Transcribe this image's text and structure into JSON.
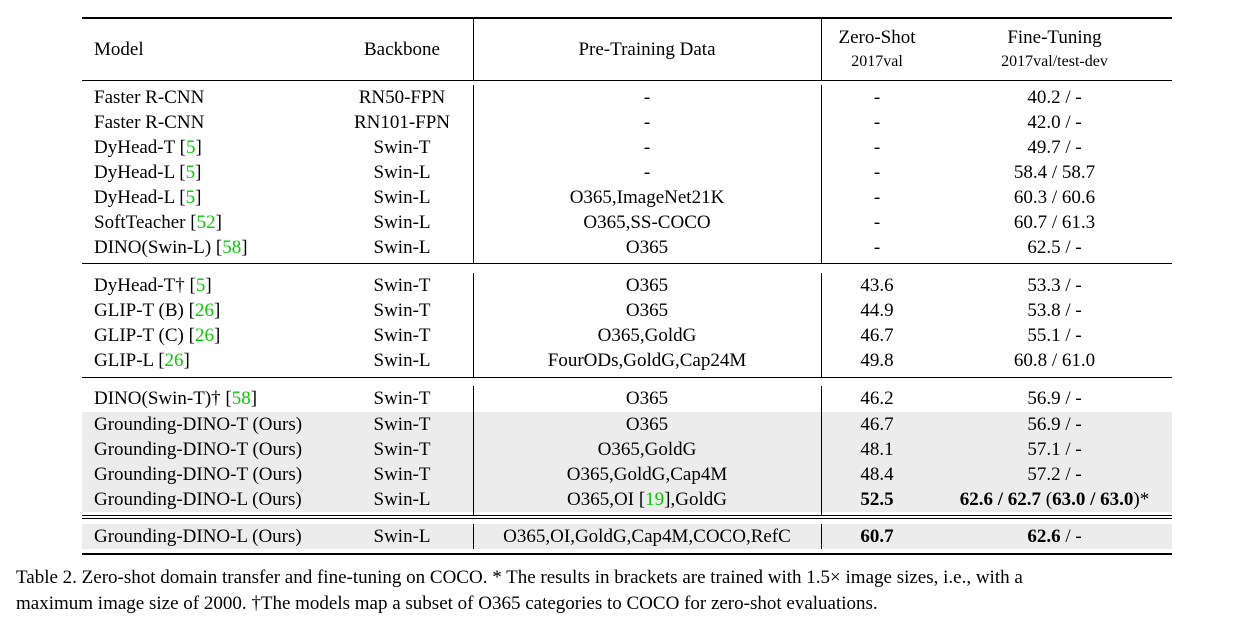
{
  "table": {
    "headers": {
      "model": "Model",
      "backbone": "Backbone",
      "pretraining": "Pre-Training Data",
      "zeroshot": "Zero-Shot",
      "zeroshot_sub": "2017val",
      "finetuning": "Fine-Tuning",
      "finetuning_sub": "2017val/test-dev"
    },
    "rows": [
      {
        "model": "Faster R-CNN",
        "cite": "",
        "backbone": "RN50-FPN",
        "data": "-",
        "data_cite": "",
        "data_tail": "",
        "zero": "-",
        "ft": "40.2 / -"
      },
      {
        "model": "Faster R-CNN",
        "cite": "",
        "backbone": "RN101-FPN",
        "data": "-",
        "data_cite": "",
        "data_tail": "",
        "zero": "-",
        "ft": "42.0 / -"
      },
      {
        "model": "DyHead-T ",
        "cite": "5",
        "backbone": "Swin-T",
        "data": "-",
        "data_cite": "",
        "data_tail": "",
        "zero": "-",
        "ft": "49.7 / -"
      },
      {
        "model": "DyHead-L ",
        "cite": "5",
        "backbone": "Swin-L",
        "data": "-",
        "data_cite": "",
        "data_tail": "",
        "zero": "-",
        "ft": "58.4 / 58.7"
      },
      {
        "model": "DyHead-L ",
        "cite": "5",
        "backbone": "Swin-L",
        "data": "O365,ImageNet21K",
        "data_cite": "",
        "data_tail": "",
        "zero": "-",
        "ft": "60.3 / 60.6"
      },
      {
        "model": "SoftTeacher ",
        "cite": "52",
        "backbone": "Swin-L",
        "data": "O365,SS-COCO",
        "data_cite": "",
        "data_tail": "",
        "zero": "-",
        "ft": "60.7 / 61.3"
      },
      {
        "model": "DINO(Swin-L) ",
        "cite": "58",
        "backbone": "Swin-L",
        "data": "O365",
        "data_cite": "",
        "data_tail": "",
        "zero": "-",
        "ft": "62.5 / -"
      },
      {
        "model": "DyHead-T† ",
        "cite": "5",
        "backbone": "Swin-T",
        "data": "O365",
        "data_cite": "",
        "data_tail": "",
        "zero": "43.6",
        "ft": "53.3 / -"
      },
      {
        "model": "GLIP-T (B) ",
        "cite": "26",
        "backbone": "Swin-T",
        "data": "O365",
        "data_cite": "",
        "data_tail": "",
        "zero": "44.9",
        "ft": "53.8 / -"
      },
      {
        "model": "GLIP-T (C) ",
        "cite": "26",
        "backbone": "Swin-T",
        "data": "O365,GoldG",
        "data_cite": "",
        "data_tail": "",
        "zero": "46.7",
        "ft": "55.1 / -"
      },
      {
        "model": "GLIP-L ",
        "cite": "26",
        "backbone": "Swin-L",
        "data": "FourODs,GoldG,Cap24M",
        "data_cite": "",
        "data_tail": "",
        "zero": "49.8",
        "ft": "60.8 / 61.0"
      },
      {
        "model": "DINO(Swin-T)† ",
        "cite": "58",
        "backbone": "Swin-T",
        "data": "O365",
        "data_cite": "",
        "data_tail": "",
        "zero": "46.2",
        "ft": "56.9 / -"
      },
      {
        "model": "Grounding-DINO-T (Ours)",
        "cite": "",
        "backbone": "Swin-T",
        "data": "O365",
        "data_cite": "",
        "data_tail": "",
        "zero": "46.7",
        "ft": "56.9 / -"
      },
      {
        "model": "Grounding-DINO-T (Ours)",
        "cite": "",
        "backbone": "Swin-T",
        "data": "O365,GoldG",
        "data_cite": "",
        "data_tail": "",
        "zero": "48.1",
        "ft": "57.1 / -"
      },
      {
        "model": "Grounding-DINO-T (Ours)",
        "cite": "",
        "backbone": "Swin-T",
        "data": "O365,GoldG,Cap4M",
        "data_cite": "",
        "data_tail": "",
        "zero": "48.4",
        "ft": "57.2 / -"
      },
      {
        "model": "Grounding-DINO-L (Ours)",
        "cite": "",
        "backbone": "Swin-L",
        "data": "O365,OI ",
        "data_cite": "19",
        "data_tail": ",GoldG",
        "zero": "52.5",
        "ft_bold": "62.6 / 62.7",
        "ft_mid": " (",
        "ft_bold2": "63.0 / 63.0",
        "ft_tail": ")*"
      },
      {
        "model": "Grounding-DINO-L (Ours)",
        "cite": "",
        "backbone": "Swin-L",
        "data": "O365,OI,GoldG,Cap4M,COCO,RefC",
        "data_cite": "",
        "data_tail": "",
        "zero": "60.7",
        "ft_bold": "62.6",
        "ft_tail": " / -"
      }
    ]
  },
  "caption": {
    "line1": "Table 2.  Zero-shot domain transfer and fine-tuning on COCO. * The results in brackets are trained with 1.5× image sizes, i.e., with a",
    "line2": "maximum image size of 2000. †The models map a subset of O365 categories to COCO for zero-shot evaluations."
  }
}
